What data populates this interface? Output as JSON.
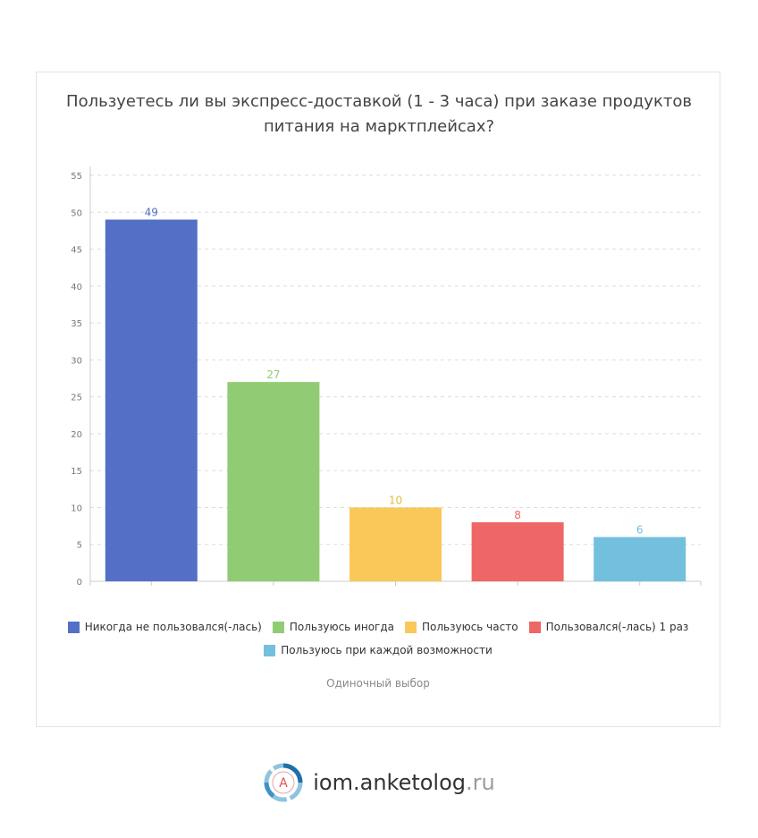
{
  "title_line1": "Пользуетесь ли вы экспресс-доставкой (1 - 3 часа) при заказе продуктов",
  "title_line2": "питания на марктплейсах?",
  "subtitle": "Одиночный выбор",
  "brand": {
    "main": "iom.anketolog",
    "tld": ".ru",
    "logo_letter": "A"
  },
  "colors": {
    "text_main": "#444444",
    "grid": "#dddddd",
    "axis": "#cccccc"
  },
  "chart_data": {
    "type": "bar",
    "categories": [
      "Никогда не пользовался(-лась)",
      "Пользуюсь иногда",
      "Пользуюсь часто",
      "Пользовался(-лась) 1 раз",
      "Пользуюсь при каждой возможности"
    ],
    "values": [
      49,
      27,
      10,
      8,
      6
    ],
    "colors": [
      "#5470c6",
      "#91cc75",
      "#fac858",
      "#ee6666",
      "#73c0de"
    ],
    "value_label_colors": [
      "#5470c6",
      "#91cc75",
      "#e3bc3c",
      "#ee6666",
      "#73c0de"
    ],
    "ylim": [
      0,
      55
    ],
    "yticks": [
      0,
      5,
      10,
      15,
      20,
      25,
      30,
      35,
      40,
      45,
      50,
      55
    ],
    "grid": true,
    "legend_position": "bottom"
  }
}
